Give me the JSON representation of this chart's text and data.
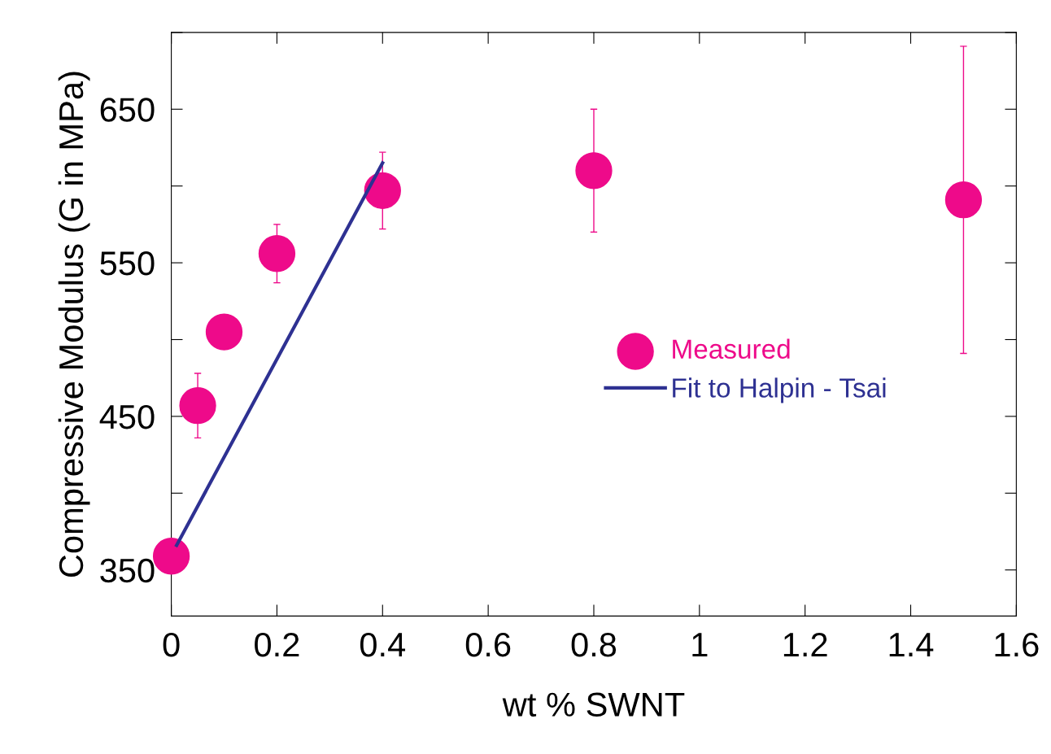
{
  "chart_data": {
    "type": "scatter",
    "xlabel": "wt % SWNT",
    "ylabel": "Compressive Modulus (G in MPa)",
    "xlim": [
      0,
      1.6
    ],
    "xticks": [
      0,
      0.2,
      0.4,
      0.6,
      0.8,
      1,
      1.2,
      1.4,
      1.6
    ],
    "ylim": [
      320,
      700
    ],
    "yticks": [
      350,
      {
        "value": 400,
        "label": null
      },
      450,
      {
        "value": 500,
        "label": null
      },
      550,
      {
        "value": 600,
        "label": null
      },
      650,
      {
        "value": 700,
        "label": null
      }
    ],
    "grid": false,
    "legend": "right",
    "series": [
      {
        "name": "Measured",
        "color": "#ee0a8a",
        "marker": "circle",
        "x": [
          0,
          0.05,
          0.1,
          0.2,
          0.4,
          0.8,
          1.5
        ],
        "values": [
          359,
          457,
          505,
          556,
          597,
          610,
          591
        ],
        "errors": [
          10,
          21,
          null,
          19,
          25,
          40,
          100
        ]
      },
      {
        "name": "Fit to Halpin - Tsai",
        "type": "line",
        "color": "#2e3192",
        "line_style": "solid",
        "x": [
          0.01,
          0.4
        ],
        "values": [
          366,
          615
        ]
      }
    ]
  }
}
